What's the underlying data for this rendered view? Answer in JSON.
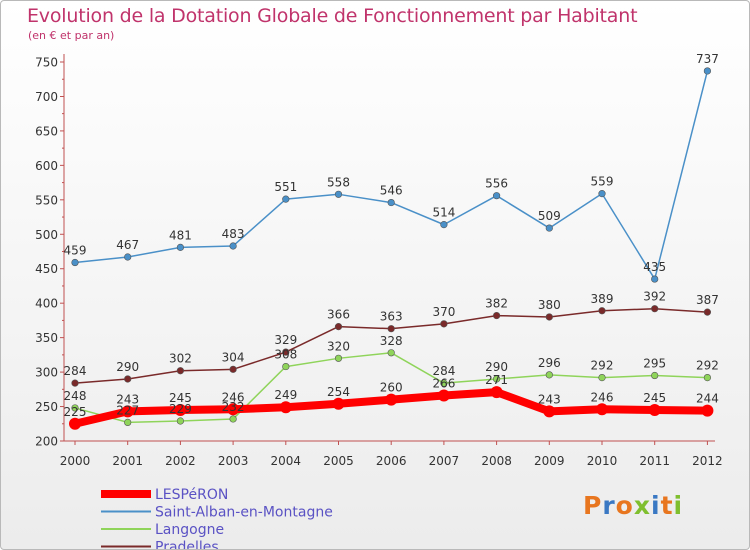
{
  "title": "Evolution de la Dotation Globale de Fonctionnement par Habitant",
  "subtitle": "(en € et par an)",
  "logo": {
    "text": "Proxiti",
    "letters": [
      {
        "ch": "P",
        "color": "#e8761f"
      },
      {
        "ch": "r",
        "color": "#3a78c3"
      },
      {
        "ch": "o",
        "color": "#e8761f"
      },
      {
        "ch": "x",
        "color": "#7fbf2e"
      },
      {
        "ch": "i",
        "color": "#3a78c3"
      },
      {
        "ch": "t",
        "color": "#e8761f"
      },
      {
        "ch": "i",
        "color": "#7fbf2e"
      }
    ]
  },
  "chart_data": {
    "type": "line",
    "x": [
      "2000",
      "2001",
      "2002",
      "2003",
      "2004",
      "2005",
      "2006",
      "2007",
      "2008",
      "2009",
      "2010",
      "2011",
      "2012"
    ],
    "ylim": [
      200,
      750
    ],
    "yticks": [
      200,
      250,
      300,
      350,
      400,
      450,
      500,
      550,
      600,
      650,
      700,
      750
    ],
    "grid": false,
    "legend_position": "bottom-left",
    "series": [
      {
        "name": "LESPéRON",
        "color": "#ff0000",
        "values": [
          225,
          243,
          245,
          246,
          249,
          254,
          260,
          266,
          271,
          243,
          246,
          245,
          244
        ]
      },
      {
        "name": "Saint-Alban-en-Montagne",
        "color": "#4a90c8",
        "values": [
          459,
          467,
          481,
          483,
          551,
          558,
          546,
          514,
          556,
          509,
          559,
          435,
          737
        ]
      },
      {
        "name": "Langogne",
        "color": "#8fd45a",
        "values": [
          248,
          227,
          229,
          232,
          308,
          320,
          328,
          284,
          290,
          296,
          292,
          295,
          292
        ]
      },
      {
        "name": "Pradelles",
        "color": "#7a2a2a",
        "values": [
          284,
          290,
          302,
          304,
          329,
          366,
          363,
          370,
          382,
          380,
          389,
          392,
          387
        ]
      }
    ]
  }
}
